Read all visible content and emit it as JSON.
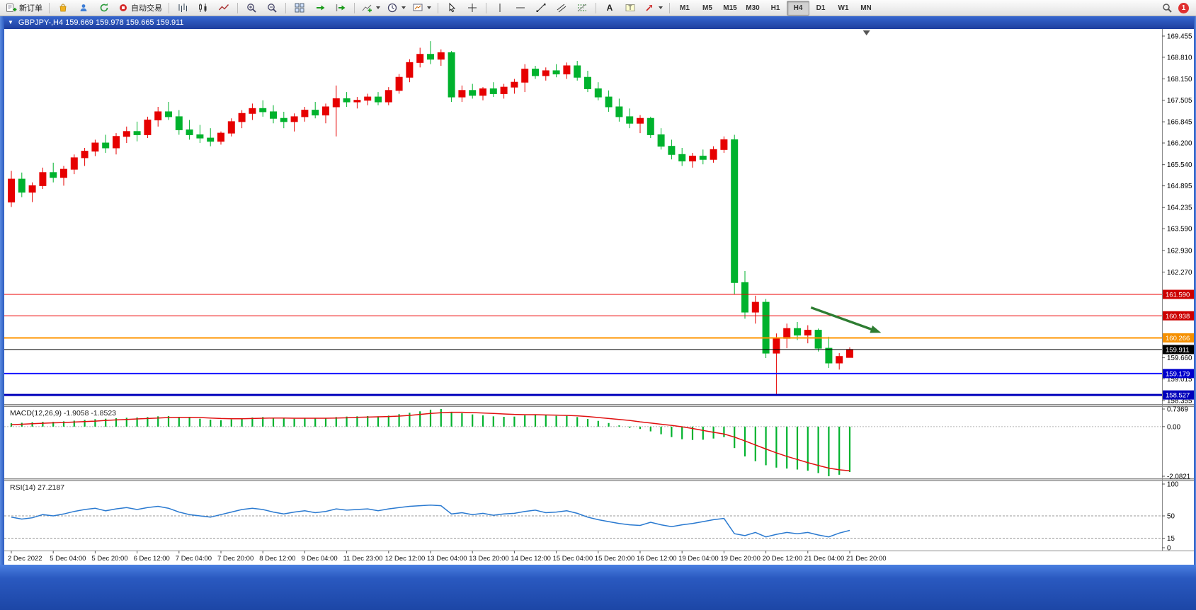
{
  "toolbar": {
    "new_order_label": "新订单",
    "autotrading_label": "自动交易",
    "timeframes": [
      "M1",
      "M5",
      "M15",
      "M30",
      "H1",
      "H4",
      "D1",
      "W1",
      "MN"
    ],
    "active_timeframe": "H4",
    "notification_badge": "1"
  },
  "chart_window": {
    "title": "GBPJPY-,H4  159.669 159.978 159.665 159.911"
  },
  "chart_data": [
    {
      "type": "candlestick",
      "symbol": "GBPJPY-",
      "timeframe": "H4",
      "title": "GBPJPY-,H4",
      "ohlc_current": {
        "open": 159.669,
        "high": 159.978,
        "low": 159.665,
        "close": 159.911
      },
      "bull_color": "#e60000",
      "bear_color": "#00b22d",
      "ylim": [
        158.25,
        169.67
      ],
      "candles": [
        [
          164.4,
          165.35,
          164.25,
          165.1
        ],
        [
          165.1,
          165.3,
          164.55,
          164.7
        ],
        [
          164.7,
          165.0,
          164.4,
          164.9
        ],
        [
          164.9,
          165.45,
          164.8,
          165.3
        ],
        [
          165.3,
          165.6,
          165.0,
          165.15
        ],
        [
          165.15,
          165.5,
          164.9,
          165.4
        ],
        [
          165.4,
          165.85,
          165.25,
          165.75
        ],
        [
          165.75,
          166.05,
          165.5,
          165.95
        ],
        [
          165.95,
          166.3,
          165.8,
          166.2
        ],
        [
          166.2,
          166.45,
          165.9,
          166.05
        ],
        [
          166.05,
          166.5,
          165.85,
          166.4
        ],
        [
          166.4,
          166.7,
          166.2,
          166.55
        ],
        [
          166.55,
          166.85,
          166.25,
          166.45
        ],
        [
          166.45,
          167.0,
          166.35,
          166.9
        ],
        [
          166.9,
          167.3,
          166.7,
          167.15
        ],
        [
          167.15,
          167.45,
          166.9,
          167.0
        ],
        [
          167.0,
          167.2,
          166.45,
          166.6
        ],
        [
          166.6,
          166.9,
          166.3,
          166.45
        ],
        [
          166.45,
          166.75,
          166.2,
          166.35
        ],
        [
          166.35,
          166.65,
          166.1,
          166.25
        ],
        [
          166.25,
          166.55,
          166.15,
          166.5
        ],
        [
          166.5,
          166.95,
          166.4,
          166.85
        ],
        [
          166.85,
          167.2,
          166.65,
          167.1
        ],
        [
          167.1,
          167.4,
          166.9,
          167.25
        ],
        [
          167.25,
          167.5,
          167.0,
          167.15
        ],
        [
          167.15,
          167.35,
          166.8,
          166.95
        ],
        [
          166.95,
          167.15,
          166.65,
          166.85
        ],
        [
          166.85,
          167.1,
          166.55,
          167.0
        ],
        [
          167.0,
          167.3,
          166.85,
          167.2
        ],
        [
          167.2,
          167.45,
          166.95,
          167.05
        ],
        [
          167.05,
          167.4,
          166.8,
          167.3
        ],
        [
          167.3,
          167.95,
          166.4,
          167.55
        ],
        [
          167.55,
          167.75,
          167.3,
          167.45
        ],
        [
          167.45,
          167.6,
          167.25,
          167.5
        ],
        [
          167.5,
          167.7,
          167.35,
          167.6
        ],
        [
          167.6,
          167.75,
          167.35,
          167.45
        ],
        [
          167.45,
          167.9,
          167.35,
          167.8
        ],
        [
          167.8,
          168.3,
          167.7,
          168.2
        ],
        [
          168.2,
          168.75,
          168.05,
          168.65
        ],
        [
          168.65,
          169.1,
          168.5,
          168.9
        ],
        [
          168.9,
          169.3,
          168.6,
          168.75
        ],
        [
          168.75,
          169.05,
          168.55,
          168.95
        ],
        [
          168.95,
          169.0,
          167.45,
          167.6
        ],
        [
          167.6,
          167.95,
          167.45,
          167.8
        ],
        [
          167.8,
          168.0,
          167.55,
          167.65
        ],
        [
          167.65,
          167.9,
          167.5,
          167.85
        ],
        [
          167.85,
          168.05,
          167.6,
          167.7
        ],
        [
          167.7,
          168.0,
          167.55,
          167.9
        ],
        [
          167.9,
          168.15,
          167.7,
          168.05
        ],
        [
          168.05,
          168.6,
          167.75,
          168.45
        ],
        [
          168.45,
          168.55,
          168.15,
          168.25
        ],
        [
          168.25,
          168.5,
          168.1,
          168.4
        ],
        [
          168.4,
          168.6,
          168.2,
          168.3
        ],
        [
          168.3,
          168.65,
          168.15,
          168.55
        ],
        [
          168.55,
          168.7,
          168.1,
          168.2
        ],
        [
          168.2,
          168.4,
          167.75,
          167.85
        ],
        [
          167.85,
          168.05,
          167.5,
          167.6
        ],
        [
          167.6,
          167.8,
          167.15,
          167.3
        ],
        [
          167.3,
          167.55,
          166.85,
          167.0
        ],
        [
          167.0,
          167.25,
          166.65,
          166.8
        ],
        [
          166.8,
          167.05,
          166.5,
          166.95
        ],
        [
          166.95,
          167.0,
          166.35,
          166.45
        ],
        [
          166.45,
          166.65,
          166.0,
          166.1
        ],
        [
          166.1,
          166.3,
          165.7,
          165.85
        ],
        [
          165.85,
          166.05,
          165.5,
          165.65
        ],
        [
          165.65,
          165.9,
          165.45,
          165.8
        ],
        [
          165.8,
          166.0,
          165.55,
          165.7
        ],
        [
          165.7,
          166.1,
          165.6,
          166.0
        ],
        [
          166.0,
          166.4,
          165.9,
          166.3
        ],
        [
          166.3,
          166.45,
          161.6,
          161.95
        ],
        [
          161.95,
          162.3,
          160.85,
          161.05
        ],
        [
          161.05,
          161.55,
          160.7,
          161.35
        ],
        [
          161.35,
          161.45,
          159.65,
          159.8
        ],
        [
          159.8,
          160.4,
          158.55,
          160.25
        ],
        [
          160.25,
          160.7,
          159.95,
          160.55
        ],
        [
          160.55,
          160.75,
          160.2,
          160.35
        ],
        [
          160.35,
          160.65,
          160.1,
          160.5
        ],
        [
          160.5,
          160.55,
          159.85,
          159.95
        ],
        [
          159.95,
          160.3,
          159.35,
          159.5
        ],
        [
          159.5,
          159.8,
          159.3,
          159.7
        ],
        [
          159.669,
          159.978,
          159.665,
          159.911
        ]
      ],
      "time_labels": [
        [
          0,
          "2 Dec 2022"
        ],
        [
          4,
          "5 Dec 04:00"
        ],
        [
          8,
          "5 Dec 20:00"
        ],
        [
          12,
          "6 Dec 12:00"
        ],
        [
          16,
          "7 Dec 04:00"
        ],
        [
          20,
          "7 Dec 20:00"
        ],
        [
          24,
          "8 Dec 12:00"
        ],
        [
          28,
          "9 Dec 04:00"
        ],
        [
          32,
          "11 Dec 23:00"
        ],
        [
          36,
          "12 Dec 12:00"
        ],
        [
          40,
          "13 Dec 04:00"
        ],
        [
          44,
          "13 Dec 20:00"
        ],
        [
          48,
          "14 Dec 12:00"
        ],
        [
          52,
          "15 Dec 04:00"
        ],
        [
          56,
          "15 Dec 20:00"
        ],
        [
          60,
          "16 Dec 12:00"
        ],
        [
          64,
          "19 Dec 04:00"
        ],
        [
          68,
          "19 Dec 20:00"
        ],
        [
          72,
          "20 Dec 12:00"
        ],
        [
          76,
          "21 Dec 04:00"
        ],
        [
          80,
          "21 Dec 20:00"
        ]
      ],
      "price_ticks": [
        169.455,
        168.81,
        168.15,
        167.505,
        166.845,
        166.2,
        165.54,
        164.895,
        164.235,
        163.59,
        162.93,
        162.27,
        159.66,
        159.015,
        158.355
      ],
      "lines": [
        {
          "price": 161.59,
          "color": "#ee0000",
          "width": 1,
          "label_bg": "#cc0000"
        },
        {
          "price": 160.938,
          "color": "#ee0000",
          "width": 1,
          "label_bg": "#cc0000"
        },
        {
          "price": 160.266,
          "color": "#ff9500",
          "width": 2,
          "label_bg": "#f59000"
        },
        {
          "price": 159.179,
          "color": "#1414ff",
          "width": 2,
          "label_bg": "#0000cc"
        },
        {
          "price": 158.527,
          "color": "#0000bb",
          "width": 3,
          "label_bg": "#0000bb"
        }
      ],
      "current_price": {
        "price": 159.911,
        "color": "#000000",
        "label_bg": "#000000"
      },
      "arrow_annotation": {
        "from_index": 76.3,
        "from_price": 161.19,
        "to_index": 83.0,
        "to_price": 160.42,
        "color": "#2e7d32"
      },
      "shift_marker_index": 81.6
    },
    {
      "type": "bar",
      "name": "MACD(12,26,9)",
      "label": "MACD(12,26,9) -1.9058 -1.8523",
      "value_main": -1.9058,
      "value_signal": -1.8523,
      "hist_color": "#00b22d",
      "line_color": "#e01010",
      "ylim": [
        -2.0821,
        0.7369
      ],
      "ticks": [
        {
          "v": 0.7369,
          "t": "0.7369"
        },
        {
          "v": 0,
          "t": "0.00"
        },
        {
          "v": -2.0821,
          "t": "-2.0821"
        }
      ],
      "histogram": [
        0.14,
        0.16,
        0.18,
        0.2,
        0.2,
        0.22,
        0.25,
        0.28,
        0.31,
        0.33,
        0.35,
        0.37,
        0.38,
        0.4,
        0.43,
        0.44,
        0.41,
        0.37,
        0.33,
        0.29,
        0.27,
        0.3,
        0.34,
        0.38,
        0.4,
        0.38,
        0.35,
        0.33,
        0.34,
        0.35,
        0.36,
        0.4,
        0.42,
        0.43,
        0.44,
        0.43,
        0.46,
        0.52,
        0.58,
        0.64,
        0.71,
        0.7369,
        0.62,
        0.56,
        0.51,
        0.47,
        0.43,
        0.41,
        0.42,
        0.47,
        0.5,
        0.48,
        0.45,
        0.45,
        0.4,
        0.32,
        0.24,
        0.15,
        0.05,
        -0.05,
        -0.1,
        -0.2,
        -0.32,
        -0.44,
        -0.53,
        -0.56,
        -0.55,
        -0.5,
        -0.44,
        -0.9,
        -1.25,
        -1.45,
        -1.62,
        -1.72,
        -1.76,
        -1.8,
        -1.85,
        -1.95,
        -2.0821,
        -2.02,
        -1.9058
      ],
      "signal": [
        0.08,
        0.1,
        0.12,
        0.14,
        0.16,
        0.17,
        0.19,
        0.21,
        0.23,
        0.26,
        0.28,
        0.3,
        0.32,
        0.34,
        0.36,
        0.38,
        0.39,
        0.39,
        0.38,
        0.36,
        0.34,
        0.33,
        0.33,
        0.34,
        0.35,
        0.36,
        0.36,
        0.35,
        0.35,
        0.35,
        0.35,
        0.36,
        0.37,
        0.39,
        0.4,
        0.41,
        0.42,
        0.44,
        0.47,
        0.51,
        0.55,
        0.58,
        0.6,
        0.6,
        0.59,
        0.57,
        0.55,
        0.53,
        0.51,
        0.5,
        0.5,
        0.49,
        0.48,
        0.47,
        0.45,
        0.42,
        0.38,
        0.34,
        0.3,
        0.26,
        0.2,
        0.15,
        0.1,
        0.05,
        -0.01,
        -0.08,
        -0.16,
        -0.24,
        -0.31,
        -0.44,
        -0.6,
        -0.77,
        -0.94,
        -1.1,
        -1.25,
        -1.38,
        -1.51,
        -1.63,
        -1.74,
        -1.81,
        -1.8523
      ]
    },
    {
      "type": "line",
      "name": "RSI(14)",
      "label": "RSI(14) 27.2187",
      "value": 27.2187,
      "line_color": "#2979d0",
      "ylim": [
        0,
        100
      ],
      "ticks": [
        100,
        50,
        15,
        0
      ],
      "levels": [
        50,
        15
      ],
      "values": [
        48,
        45,
        47,
        52,
        50,
        53,
        57,
        60,
        62,
        58,
        61,
        63,
        60,
        63,
        65,
        62,
        56,
        52,
        50,
        48,
        52,
        56,
        60,
        62,
        60,
        56,
        53,
        56,
        58,
        55,
        57,
        61,
        59,
        60,
        61,
        58,
        61,
        63,
        65,
        66,
        67,
        66,
        53,
        55,
        52,
        54,
        51,
        53,
        54,
        57,
        59,
        55,
        56,
        58,
        54,
        48,
        44,
        41,
        38,
        36,
        35,
        40,
        36,
        33,
        36,
        38,
        41,
        44,
        46,
        22,
        19,
        24,
        17,
        21,
        24,
        22,
        24,
        20,
        17,
        23,
        27.2187
      ]
    }
  ]
}
